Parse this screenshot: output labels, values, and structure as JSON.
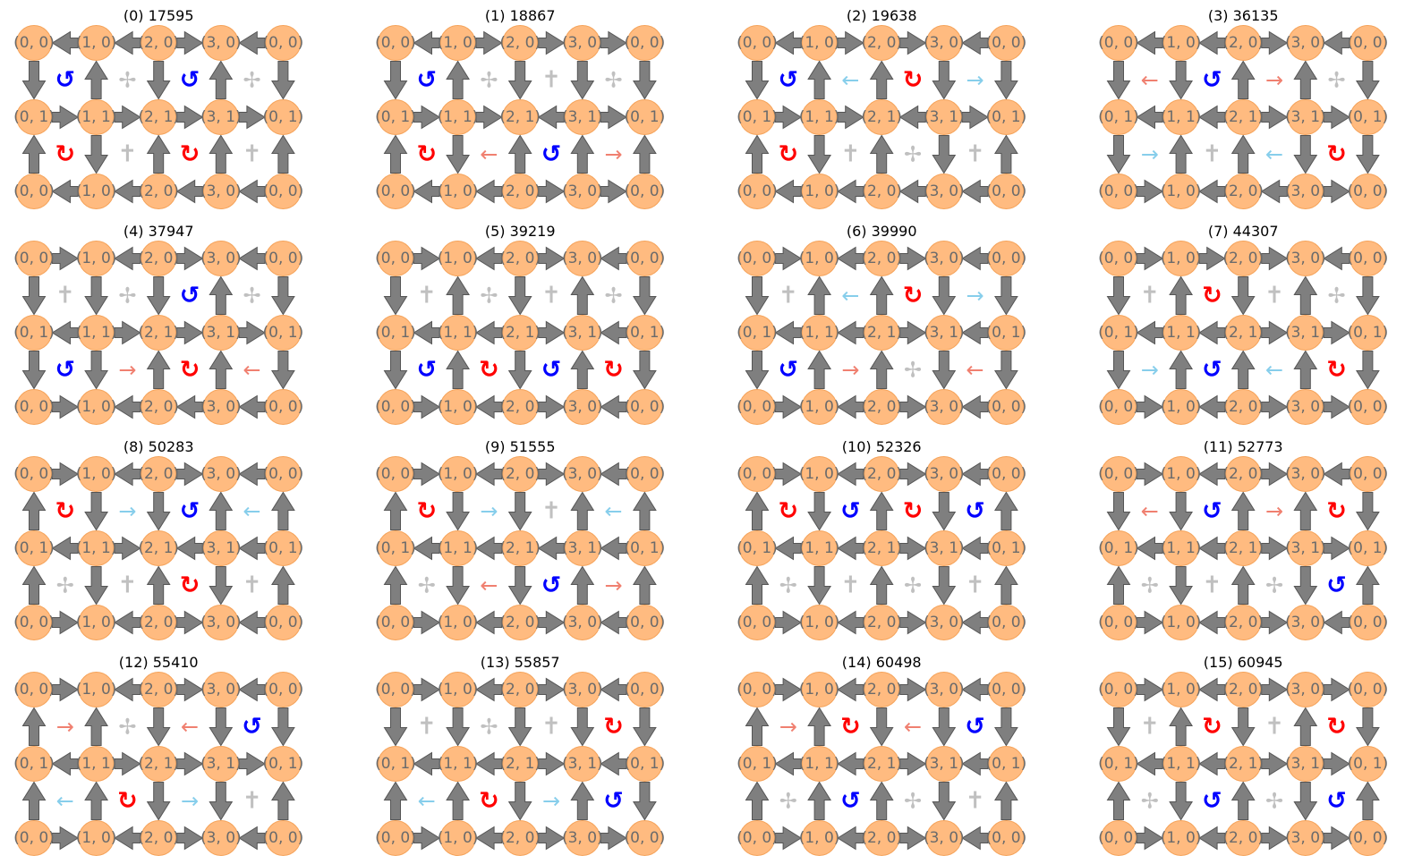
{
  "colors": {
    "node_fill": "#ffbb80",
    "node_edge": "#f5a35a",
    "arrow": "#7f7f7f",
    "ccw": "#0000ff",
    "cw": "#ff0000",
    "arrow_left_right": "#f08070",
    "arrow_right_left": "#87ceeb",
    "neutral": "#c0c0c0"
  },
  "node_labels": {
    "row0": [
      "(0, 0)",
      "(1, 0)",
      "(2, 0)",
      "(3, 0)",
      "(0, 0)"
    ],
    "row1": [
      "(0, 1)",
      "(1, 1)",
      "(2, 1)",
      "(3, 1)",
      "(0, 1)"
    ],
    "row2": [
      "(0, 0)",
      "(1, 0)",
      "(2, 0)",
      "(3, 0)",
      "(0, 0)"
    ]
  },
  "symbols": {
    "ccw": "↺",
    "cw": "↻",
    "pink_right": "→",
    "pink_left": "←",
    "blue_right": "→",
    "blue_left": "←",
    "cross_a": "✢",
    "cross_b": "✝"
  },
  "panels": [
    {
      "title": "(0) 17595",
      "h": [
        "L",
        "L",
        "R",
        "L",
        "R",
        "R",
        "R",
        "R",
        "L",
        "L",
        "L",
        "L"
      ],
      "v": [
        "D",
        "U",
        "D",
        "U",
        "D",
        "U",
        "D",
        "U",
        "U",
        "U"
      ],
      "faces": [
        [
          "ccw",
          "cross_a",
          "ccw",
          "cross_a"
        ],
        [
          "cw",
          "cross_b",
          "cw",
          "cross_b"
        ]
      ]
    },
    {
      "title": "(1) 18867",
      "h": [
        "L",
        "R",
        "R",
        "R",
        "R",
        "R",
        "L",
        "R",
        "L",
        "L",
        "R",
        "R"
      ],
      "v": [
        "D",
        "U",
        "D",
        "D",
        "D",
        "U",
        "D",
        "U",
        "U",
        "U"
      ],
      "faces": [
        [
          "ccw",
          "cross_a",
          "cross_b",
          "cross_a"
        ],
        [
          "cw",
          "pink_left",
          "ccw",
          "pink_right"
        ]
      ]
    },
    {
      "title": "(2) 19638",
      "h": [
        "L",
        "R",
        "R",
        "L",
        "R",
        "R",
        "L",
        "R",
        "L",
        "L",
        "L",
        "L"
      ],
      "v": [
        "D",
        "U",
        "U",
        "D",
        "D",
        "U",
        "D",
        "U",
        "D",
        "U"
      ],
      "faces": [
        [
          "ccw",
          "blue_left",
          "cw",
          "blue_right"
        ],
        [
          "cw",
          "cross_b",
          "cross_a",
          "cross_b"
        ]
      ]
    },
    {
      "title": "(3) 36135",
      "h": [
        "L",
        "L",
        "R",
        "L",
        "L",
        "L",
        "R",
        "R",
        "R",
        "L",
        "L",
        "R"
      ],
      "v": [
        "D",
        "D",
        "U",
        "U",
        "D",
        "D",
        "U",
        "U",
        "D",
        "D"
      ],
      "faces": [
        [
          "pink_left",
          "ccw",
          "pink_right",
          "cross_a"
        ],
        [
          "blue_right",
          "cross_b",
          "blue_left",
          "cw"
        ]
      ]
    },
    {
      "title": "(4) 37947",
      "h": [
        "R",
        "L",
        "R",
        "L",
        "L",
        "R",
        "R",
        "R",
        "R",
        "L",
        "L",
        "L"
      ],
      "v": [
        "D",
        "D",
        "D",
        "U",
        "D",
        "D",
        "D",
        "U",
        "U",
        "D"
      ],
      "faces": [
        [
          "cross_b",
          "cross_a",
          "ccw",
          "cross_a"
        ],
        [
          "ccw",
          "pink_right",
          "cw",
          "pink_left"
        ]
      ]
    },
    {
      "title": "(5) 39219",
      "h": [
        "R",
        "L",
        "R",
        "L",
        "L",
        "L",
        "R",
        "L",
        "R",
        "L",
        "R",
        "L"
      ],
      "v": [
        "D",
        "U",
        "D",
        "U",
        "D",
        "D",
        "U",
        "D",
        "U",
        "D"
      ],
      "faces": [
        [
          "cross_b",
          "cross_a",
          "cross_b",
          "cross_a"
        ],
        [
          "ccw",
          "cw",
          "ccw",
          "cw"
        ]
      ]
    },
    {
      "title": "(6) 39990",
      "h": [
        "R",
        "L",
        "R",
        "L",
        "L",
        "L",
        "R",
        "L",
        "R",
        "L",
        "R",
        "L"
      ],
      "v": [
        "D",
        "U",
        "U",
        "D",
        "D",
        "D",
        "U",
        "U",
        "D",
        "D"
      ],
      "faces": [
        [
          "cross_b",
          "blue_left",
          "cw",
          "blue_right"
        ],
        [
          "ccw",
          "pink_right",
          "cross_a",
          "pink_left"
        ]
      ]
    },
    {
      "title": "(7) 44307",
      "h": [
        "R",
        "R",
        "R",
        "L",
        "L",
        "L",
        "R",
        "R",
        "R",
        "L",
        "R",
        "R"
      ],
      "v": [
        "D",
        "U",
        "D",
        "U",
        "D",
        "D",
        "U",
        "U",
        "U",
        "D"
      ],
      "faces": [
        [
          "cross_b",
          "cw",
          "cross_b",
          "cross_a"
        ],
        [
          "blue_right",
          "ccw",
          "blue_left",
          "cw"
        ]
      ]
    },
    {
      "title": "(8) 50283",
      "h": [
        "R",
        "L",
        "R",
        "L",
        "L",
        "R",
        "L",
        "L",
        "R",
        "L",
        "R",
        "L"
      ],
      "v": [
        "U",
        "D",
        "D",
        "U",
        "U",
        "U",
        "D",
        "U",
        "D",
        "U"
      ],
      "faces": [
        [
          "cw",
          "blue_right",
          "ccw",
          "blue_left"
        ],
        [
          "cross_a",
          "cross_b",
          "cw",
          "cross_b"
        ]
      ]
    },
    {
      "title": "(9) 51555",
      "h": [
        "R",
        "L",
        "R",
        "L",
        "L",
        "L",
        "L",
        "L",
        "R",
        "L",
        "R",
        "L"
      ],
      "v": [
        "U",
        "D",
        "D",
        "U",
        "U",
        "U",
        "D",
        "D",
        "U",
        "U"
      ],
      "faces": [
        [
          "cw",
          "blue_right",
          "cross_b",
          "blue_left"
        ],
        [
          "cross_a",
          "pink_left",
          "ccw",
          "pink_right"
        ]
      ]
    },
    {
      "title": "(10) 52326",
      "h": [
        "R",
        "L",
        "R",
        "L",
        "L",
        "L",
        "R",
        "L",
        "R",
        "L",
        "R",
        "L"
      ],
      "v": [
        "U",
        "D",
        "U",
        "D",
        "U",
        "U",
        "D",
        "U",
        "D",
        "U"
      ],
      "faces": [
        [
          "cw",
          "ccw",
          "cw",
          "ccw"
        ],
        [
          "cross_a",
          "cross_b",
          "cross_a",
          "cross_b"
        ]
      ]
    },
    {
      "title": "(11) 52773",
      "h": [
        "R",
        "L",
        "R",
        "L",
        "L",
        "L",
        "R",
        "R",
        "R",
        "L",
        "R",
        "L"
      ],
      "v": [
        "D",
        "D",
        "U",
        "U",
        "D",
        "U",
        "D",
        "U",
        "D",
        "U"
      ],
      "faces": [
        [
          "pink_left",
          "ccw",
          "pink_right",
          "cw"
        ],
        [
          "cross_a",
          "cross_b",
          "cross_a",
          "ccw"
        ]
      ]
    },
    {
      "title": "(12) 55410",
      "h": [
        "R",
        "L",
        "R",
        "L",
        "L",
        "R",
        "R",
        "R",
        "R",
        "L",
        "R",
        "L"
      ],
      "v": [
        "U",
        "U",
        "D",
        "D",
        "D",
        "U",
        "U",
        "D",
        "D",
        "U"
      ],
      "faces": [
        [
          "pink_right",
          "cross_a",
          "pink_left",
          "ccw"
        ],
        [
          "blue_left",
          "cw",
          "blue_right",
          "cross_b"
        ]
      ]
    },
    {
      "title": "(13) 55857",
      "h": [
        "R",
        "L",
        "R",
        "L",
        "L",
        "L",
        "R",
        "L",
        "R",
        "L",
        "R",
        "R"
      ],
      "v": [
        "D",
        "D",
        "D",
        "D",
        "D",
        "U",
        "U",
        "D",
        "U",
        "D"
      ],
      "faces": [
        [
          "cross_b",
          "cross_a",
          "cross_b",
          "cw"
        ],
        [
          "blue_left",
          "cw",
          "blue_right",
          "ccw"
        ]
      ]
    },
    {
      "title": "(14) 60498",
      "h": [
        "R",
        "L",
        "R",
        "L",
        "L",
        "L",
        "R",
        "L",
        "R",
        "L",
        "R",
        "L"
      ],
      "v": [
        "U",
        "U",
        "D",
        "D",
        "D",
        "U",
        "U",
        "U",
        "D",
        "U"
      ],
      "faces": [
        [
          "pink_right",
          "cw",
          "pink_left",
          "ccw"
        ],
        [
          "cross_a",
          "ccw",
          "cross_a",
          "cross_b"
        ]
      ]
    },
    {
      "title": "(15) 60945",
      "h": [
        "R",
        "L",
        "R",
        "R",
        "L",
        "L",
        "R",
        "R",
        "R",
        "L",
        "R",
        "R"
      ],
      "v": [
        "D",
        "U",
        "D",
        "U",
        "D",
        "U",
        "D",
        "U",
        "D",
        "U"
      ],
      "faces": [
        [
          "cross_b",
          "cw",
          "cross_b",
          "cw"
        ],
        [
          "cross_a",
          "ccw",
          "cross_a",
          "ccw"
        ]
      ]
    }
  ]
}
